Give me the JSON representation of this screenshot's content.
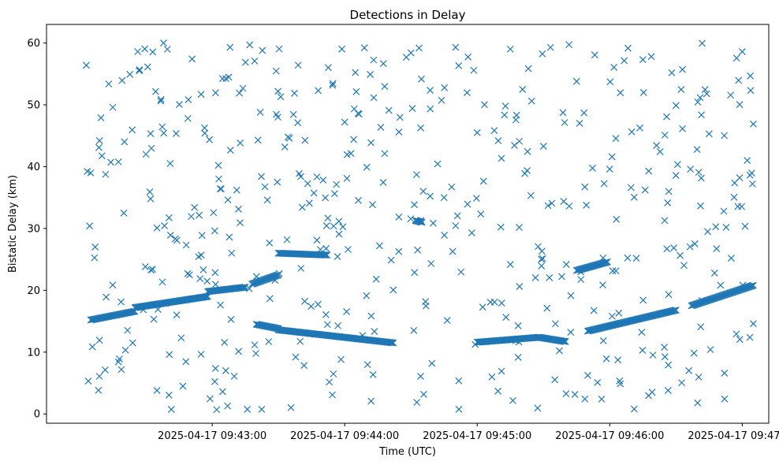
{
  "chart_data": {
    "type": "scatter",
    "title": "Detections in Delay",
    "xlabel": "Time (UTC)",
    "ylabel": "Bistatic Delay (km)",
    "x_tick_labels": [
      "2025-04-17 09:43:00",
      "2025-04-17 09:44:00",
      "2025-04-17 09:45:00",
      "2025-04-17 09:46:00",
      "2025-04-17 09:47:00"
    ],
    "y_tick_labels": [
      "0",
      "10",
      "20",
      "30",
      "40",
      "50",
      "60"
    ],
    "xlim": [
      "2025-04-17 09:41:45",
      "2025-04-17 09:47:12"
    ],
    "ylim": [
      -1.5,
      63
    ],
    "grid": false,
    "marker": "x",
    "color": "#1f77b4",
    "series": [
      {
        "tracks": [
          {
            "start": [
              "2025-04-17 09:42:05",
              15.2
            ],
            "end": [
              "2025-04-17 09:42:25",
              16.6
            ]
          },
          {
            "start": [
              "2025-04-17 09:42:25",
              17.2
            ],
            "end": [
              "2025-04-17 09:42:58",
              19.0
            ]
          },
          {
            "start": [
              "2025-04-17 09:42:58",
              19.8
            ],
            "end": [
              "2025-04-17 09:43:15",
              20.5
            ]
          },
          {
            "start": [
              "2025-04-17 09:43:18",
              21.0
            ],
            "end": [
              "2025-04-17 09:43:30",
              22.5
            ]
          },
          {
            "start": [
              "2025-04-17 09:43:20",
              14.5
            ],
            "end": [
              "2025-04-17 09:43:30",
              13.8
            ]
          },
          {
            "start": [
              "2025-04-17 09:43:30",
              13.6
            ],
            "end": [
              "2025-04-17 09:44:22",
              11.5
            ]
          },
          {
            "start": [
              "2025-04-17 09:43:30",
              26.0
            ],
            "end": [
              "2025-04-17 09:43:52",
              25.7
            ]
          },
          {
            "start": [
              "2025-04-17 09:44:32",
              31.3
            ],
            "end": [
              "2025-04-17 09:44:35",
              31.0
            ]
          },
          {
            "start": [
              "2025-04-17 09:45:00",
              11.6
            ],
            "end": [
              "2025-04-17 09:45:28",
              12.4
            ]
          },
          {
            "start": [
              "2025-04-17 09:45:28",
              12.4
            ],
            "end": [
              "2025-04-17 09:45:40",
              11.7
            ]
          },
          {
            "start": [
              "2025-04-17 09:45:45",
              23.2
            ],
            "end": [
              "2025-04-17 09:45:59",
              24.6
            ]
          },
          {
            "start": [
              "2025-04-17 09:45:50",
              13.4
            ],
            "end": [
              "2025-04-17 09:46:30",
              16.8
            ]
          },
          {
            "start": [
              "2025-04-17 09:46:37",
              17.5
            ],
            "end": [
              "2025-04-17 09:47:05",
              20.8
            ]
          }
        ],
        "scatter_points": [
          [
            "2025-04-17 09:42:03",
            56.4
          ],
          [
            "2025-04-17 09:42:05",
            39.0
          ],
          [
            "2025-04-17 09:42:07",
            27.0
          ],
          [
            "2025-04-17 09:42:09",
            44.2
          ],
          [
            "2025-04-17 09:42:12",
            18.9
          ],
          [
            "2025-04-17 09:42:15",
            49.6
          ],
          [
            "2025-04-17 09:42:18",
            8.9
          ],
          [
            "2025-04-17 09:42:20",
            32.5
          ],
          [
            "2025-04-17 09:42:24",
            11.5
          ],
          [
            "2025-04-17 09:42:27",
            55.5
          ],
          [
            "2025-04-17 09:42:30",
            42.0
          ],
          [
            "2025-04-17 09:42:33",
            23.4
          ],
          [
            "2025-04-17 09:42:35",
            3.8
          ],
          [
            "2025-04-17 09:42:38",
            60.0
          ],
          [
            "2025-04-17 09:42:41",
            40.5
          ],
          [
            "2025-04-17 09:42:44",
            28.1
          ],
          [
            "2025-04-17 09:42:46",
            12.3
          ],
          [
            "2025-04-17 09:42:49",
            47.8
          ],
          [
            "2025-04-17 09:42:52",
            33.4
          ],
          [
            "2025-04-17 09:42:55",
            51.7
          ],
          [
            "2025-04-17 09:43:03",
            38.0
          ],
          [
            "2025-04-17 09:43:10",
            6.1
          ],
          [
            "2025-04-17 09:43:17",
            59.7
          ],
          [
            "2025-04-17 09:43:25",
            34.6
          ],
          [
            "2025-04-17 09:43:35",
            44.6
          ],
          [
            "2025-04-17 09:43:48",
            52.3
          ],
          [
            "2025-04-17 09:44:00",
            47.2
          ],
          [
            "2025-04-17 09:44:10",
            39.9
          ],
          [
            "2025-04-17 09:44:20",
            49.1
          ],
          [
            "2025-04-17 09:44:30",
            58.4
          ],
          [
            "2025-04-17 09:44:45",
            35.0
          ],
          [
            "2025-04-17 09:45:00",
            45.5
          ],
          [
            "2025-04-17 09:45:15",
            59.0
          ],
          [
            "2025-04-17 09:45:30",
            43.3
          ],
          [
            "2025-04-17 09:45:45",
            53.8
          ],
          [
            "2025-04-17 09:46:00",
            39.6
          ],
          [
            "2025-04-17 09:46:15",
            57.3
          ],
          [
            "2025-04-17 09:46:30",
            49.9
          ],
          [
            "2025-04-17 09:46:45",
            45.3
          ],
          [
            "2025-04-17 09:47:00",
            58.6
          ],
          [
            "2025-04-17 09:47:05",
            46.9
          ],
          [
            "2025-04-17 09:47:05",
            14.6
          ]
        ],
        "note_count_estimate": 900
      }
    ]
  }
}
